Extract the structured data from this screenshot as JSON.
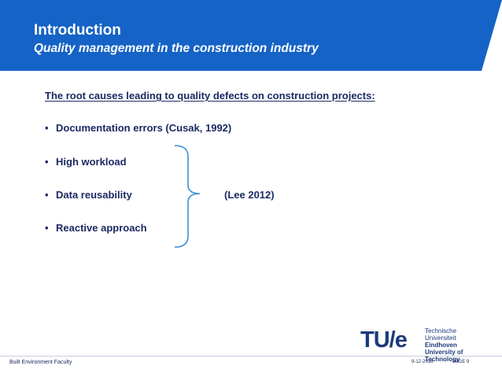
{
  "header": {
    "title": "Introduction",
    "subtitle": "Quality management in the construction industry",
    "color": "#1563c6"
  },
  "content": {
    "heading": "The root causes leading to quality defects on construction projects:",
    "bullet_char": "•",
    "bullets": [
      "Documentation errors (Cusak, 1992)",
      "High workload",
      "Data reusability",
      "Reactive approach"
    ],
    "group_reference": "(Lee 2012)"
  },
  "logo": {
    "mark": "TU/e",
    "lines": [
      "Technische Universiteit",
      "Eindhoven",
      "University of Technology"
    ]
  },
  "footer": {
    "faculty": "Built Environment Faculty",
    "date": "9-12-2016",
    "page": "PAGE 9"
  }
}
